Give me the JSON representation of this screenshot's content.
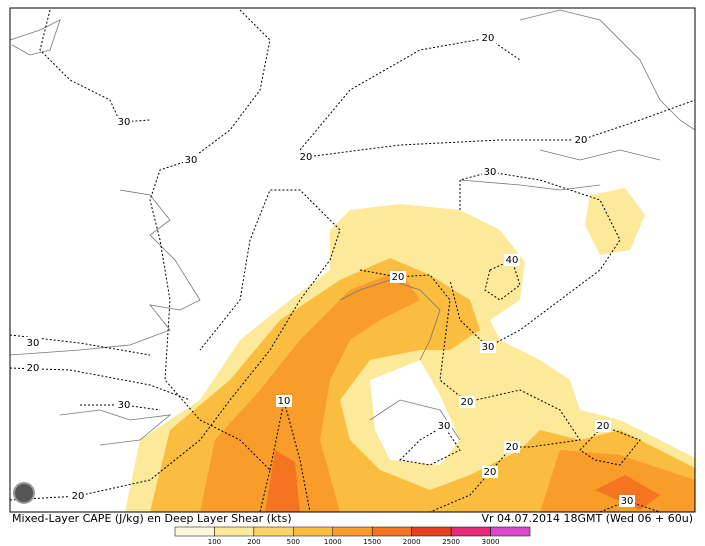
{
  "map": {
    "caption": "Mixed-Layer CAPE (J/kg) en Deep Layer Shear (kts)",
    "valid_time": "Vr 04.07.2014 18GMT (Wed 06 + 60u)",
    "contour_labels": [
      20,
      30,
      30,
      20,
      30,
      20,
      20,
      40,
      30,
      30,
      20,
      30,
      10,
      20,
      30,
      20,
      20,
      20,
      20,
      30
    ],
    "colorbar": {
      "below_color": "#fff8d8",
      "levels": [
        {
          "value": 100,
          "color": "#fde99a"
        },
        {
          "value": 200,
          "color": "#fcd466"
        },
        {
          "value": 500,
          "color": "#fbbd40"
        },
        {
          "value": 1000,
          "color": "#f89c2a"
        },
        {
          "value": 1500,
          "color": "#f47420"
        },
        {
          "value": 2000,
          "color": "#e8401c"
        },
        {
          "value": 2500,
          "color": "#e8287a"
        },
        {
          "value": 3000,
          "color": "#dd48cc"
        }
      ]
    }
  }
}
